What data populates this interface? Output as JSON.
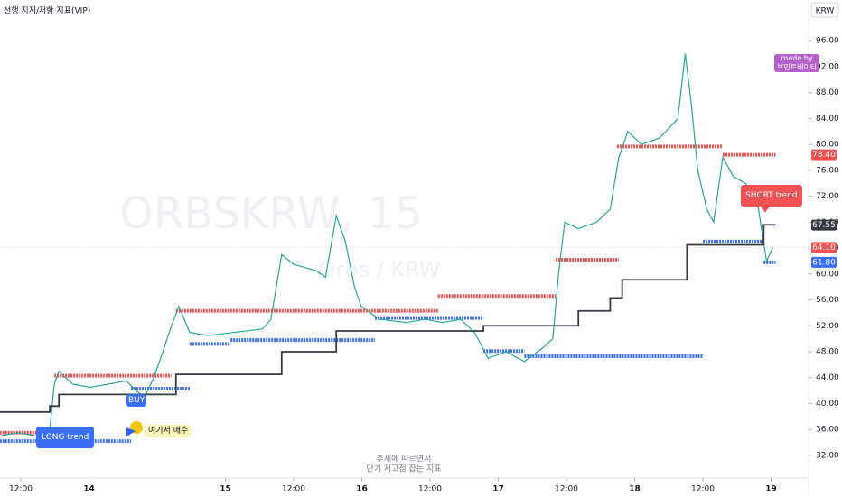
{
  "chart_data": {
    "type": "line",
    "title": "선행 지지/저항 지표(VIP)",
    "currency": "KRW",
    "watermark": "ORBSKRW, 15",
    "watermark_sub": "Orbs / KRW",
    "xlim": [
      8.34,
      150.6
    ],
    "xticks": [
      {
        "value": 12,
        "label": "12:00"
      },
      {
        "value": 24,
        "label": "14"
      },
      {
        "value": 48,
        "label": "15"
      },
      {
        "value": 60,
        "label": "12:00"
      },
      {
        "value": 72,
        "label": "16"
      },
      {
        "value": 84,
        "label": "12:00"
      },
      {
        "value": 96,
        "label": "17"
      },
      {
        "value": 108,
        "label": "12:00"
      },
      {
        "value": 120,
        "label": "18"
      },
      {
        "value": 132,
        "label": "12:00"
      },
      {
        "value": 144,
        "label": "19"
      }
    ],
    "ylim": [
      29.9,
      102.3
    ],
    "yticks": [
      {
        "value": 32,
        "label": "32.00"
      },
      {
        "value": 36,
        "label": "36.00"
      },
      {
        "value": 40,
        "label": "40.00"
      },
      {
        "value": 44,
        "label": "44.00"
      },
      {
        "value": 48,
        "label": "48.00"
      },
      {
        "value": 52,
        "label": "52.00"
      },
      {
        "value": 56,
        "label": "56.00"
      },
      {
        "value": 60,
        "label": "60.00"
      },
      {
        "value": 64,
        "label": "64.00"
      },
      {
        "value": 68,
        "label": "68.00"
      },
      {
        "value": 72,
        "label": "72.00"
      },
      {
        "value": 76,
        "label": "76.00"
      },
      {
        "value": 80,
        "label": "80.00"
      },
      {
        "value": 84,
        "label": "84.00"
      },
      {
        "value": 88,
        "label": "88.00"
      },
      {
        "value": 92,
        "label": "92.00"
      },
      {
        "value": 96,
        "label": "96.00"
      }
    ],
    "price": {
      "color": "#26a69a",
      "x": [
        8.3,
        11.5,
        14.7,
        17.1,
        17.9,
        18.7,
        21.1,
        24.2,
        27.4,
        30.6,
        32.2,
        33.8,
        35.4,
        37,
        38.5,
        39.8,
        41.7,
        44.9,
        49.7,
        54.5,
        56,
        57.9,
        60,
        64,
        65.6,
        67.5,
        69.1,
        70.7,
        71.9,
        75.1,
        79.9,
        83.1,
        86.2,
        89.4,
        91.8,
        94.2,
        97.4,
        100.6,
        103.7,
        105.6,
        106.6,
        107.7,
        110.1,
        113.3,
        115.7,
        117.2,
        118.8,
        121.2,
        124.4,
        127.6,
        128.9,
        130,
        131.1,
        132.7,
        133.9,
        135.5,
        137.4,
        139.5,
        141.6,
        143.2,
        144.3
      ],
      "values": [
        35,
        35.5,
        35,
        36,
        43,
        45,
        43,
        42.5,
        43,
        43.5,
        42,
        41,
        44,
        48,
        52,
        55,
        51,
        50.5,
        51,
        51.5,
        53,
        63,
        61.5,
        60.5,
        59.5,
        69,
        65,
        58,
        55,
        53,
        52.5,
        53,
        52.5,
        53,
        51,
        47,
        48,
        46.5,
        48.5,
        50,
        60,
        68,
        67,
        68,
        70,
        78,
        82,
        80,
        81,
        84,
        94,
        86,
        76,
        70,
        68,
        78,
        75,
        74,
        71,
        62,
        64.1
      ]
    },
    "trail": {
      "color": "#363a45",
      "x": [
        8.3,
        17.1,
        18.7,
        39.3,
        57.9,
        67.5,
        93.4,
        110.1,
        115.7,
        117.8,
        129.2,
        142.7,
        144.8
      ],
      "values": [
        38.7,
        39.6,
        41.4,
        44.5,
        48.0,
        51.2,
        52.0,
        54.3,
        56.3,
        59.1,
        64.5,
        67.6,
        67.6
      ]
    },
    "resistance": {
      "color": "#f05252",
      "segments": [
        {
          "x": [
            8.3,
            17.1
          ],
          "value": 35.5
        },
        {
          "x": [
            17.9,
            38.5
          ],
          "value": 44.3
        },
        {
          "x": [
            39.3,
            85.4
          ],
          "value": 54.3
        },
        {
          "x": [
            85.4,
            106.1
          ],
          "value": 56.6
        },
        {
          "x": [
            106.1,
            117.2
          ],
          "value": 62.2
        },
        {
          "x": [
            116.9,
            135.5
          ],
          "value": 79.7
        },
        {
          "x": [
            135.5,
            144.8
          ],
          "value": 78.4
        }
      ]
    },
    "support": {
      "color": "#3b6ef5",
      "segments": [
        {
          "x": [
            8.3,
            31.4
          ],
          "value": 34.2
        },
        {
          "x": [
            31.4,
            41.7
          ],
          "value": 42.3
        },
        {
          "x": [
            41.7,
            48.9
          ],
          "value": 49.2
        },
        {
          "x": [
            48.9,
            74.3
          ],
          "value": 49.8
        },
        {
          "x": [
            74.3,
            93.4
          ],
          "value": 53.2
        },
        {
          "x": [
            93.4,
            100.6
          ],
          "value": 48.1
        },
        {
          "x": [
            100.6,
            132.0
          ],
          "value": 47.3
        },
        {
          "x": [
            132.0,
            142.7
          ],
          "value": 65.0
        },
        {
          "x": [
            142.7,
            144.8
          ],
          "value": 61.8
        }
      ]
    },
    "price_tags": [
      {
        "value": 78.4,
        "label": "78.40",
        "color": "#f05252"
      },
      {
        "value": 67.55,
        "label": "67.55",
        "color": "#363a45"
      },
      {
        "value": 64.1,
        "label": "64.10",
        "color": "#f05252"
      },
      {
        "value": 61.8,
        "label": "61.80",
        "color": "#3b6ef5"
      }
    ],
    "annotations": {
      "long": "LONG trend",
      "buy": "BUY",
      "buy_here": "여기서 매수",
      "short": "SHORT trend",
      "made_by": "made by",
      "author": "브민트베이티",
      "note1": "추세에 따르면서",
      "note2": "단기 저고점 잡는 지표"
    }
  }
}
